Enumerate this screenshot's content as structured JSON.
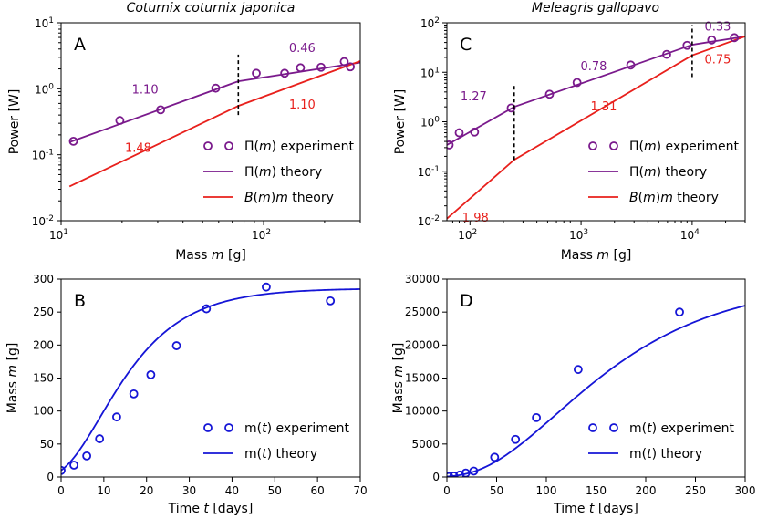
{
  "figure": {
    "title_left": "Coturnix coturnix japonica",
    "title_right": "Meleagris gallopavo"
  },
  "chart_data": [
    {
      "id": "A",
      "type": "line",
      "panel_label": "A",
      "title": "Coturnix coturnix japonica",
      "xlabel": "Mass m [g]",
      "ylabel": "Power [W]",
      "xscale": "log",
      "yscale": "log",
      "xlim": [
        10,
        300
      ],
      "ylim": [
        0.01,
        10
      ],
      "x_ticks": [
        {
          "v": 10,
          "label": "10^1"
        },
        {
          "v": 100,
          "label": "10^2"
        }
      ],
      "y_ticks": [
        {
          "v": 0.01,
          "label": "10^-2"
        },
        {
          "v": 0.1,
          "label": "10^-1"
        },
        {
          "v": 1,
          "label": "10^0"
        },
        {
          "v": 10,
          "label": "10^1"
        }
      ],
      "series": [
        {
          "name": "Π(m) experiment",
          "kind": "scatter",
          "color": "#7a1a8c",
          "x": [
            11.5,
            19.5,
            31,
            58,
            92,
            127,
            152,
            192,
            250,
            268
          ],
          "y": [
            0.16,
            0.33,
            0.48,
            1.02,
            1.72,
            1.72,
            2.08,
            2.12,
            2.58,
            2.15
          ]
        },
        {
          "name": "Π(m) theory",
          "kind": "line",
          "color": "#7a1a8c",
          "x": [
            11,
            75,
            300
          ],
          "y": [
            0.155,
            1.3,
            2.5
          ]
        },
        {
          "name": "B(m)m theory",
          "kind": "line",
          "color": "#e8201c",
          "x": [
            11,
            75,
            300
          ],
          "y": [
            0.033,
            0.55,
            2.63
          ]
        }
      ],
      "annotations": [
        {
          "text": "1.10",
          "x": 26,
          "y": 0.85,
          "color": "#7a1a8c"
        },
        {
          "text": "0.46",
          "x": 155,
          "y": 3.6,
          "color": "#7a1a8c"
        },
        {
          "text": "1.48",
          "x": 24,
          "y": 0.11,
          "color": "#e8201c"
        },
        {
          "text": "1.10",
          "x": 155,
          "y": 0.5,
          "color": "#e8201c"
        }
      ],
      "vline": {
        "x": 75,
        "ymin": 0.4,
        "ymax": 3.3
      },
      "legend": {
        "position": "lower-right",
        "labels": [
          "Π(m) experiment",
          "Π(m) theory",
          "B(m)m theory"
        ]
      }
    },
    {
      "id": "C",
      "type": "line",
      "panel_label": "C",
      "title": "Meleagris gallopavo",
      "xlabel": "Mass m [g]",
      "ylabel": "Power [W]",
      "xscale": "log",
      "yscale": "log",
      "xlim": [
        62,
        30000
      ],
      "ylim": [
        0.01,
        100
      ],
      "x_ticks": [
        {
          "v": 100,
          "label": "10^2"
        },
        {
          "v": 1000,
          "label": "10^3"
        },
        {
          "v": 10000,
          "label": "10^4"
        }
      ],
      "y_ticks": [
        {
          "v": 0.01,
          "label": "10^-2"
        },
        {
          "v": 0.1,
          "label": "10^-1"
        },
        {
          "v": 1,
          "label": "10^0"
        },
        {
          "v": 10,
          "label": "10^1"
        },
        {
          "v": 100,
          "label": "10^2"
        }
      ],
      "series": [
        {
          "name": "Π(m) experiment",
          "kind": "scatter",
          "color": "#7a1a8c",
          "x": [
            65,
            80,
            110,
            235,
            520,
            920,
            2800,
            5900,
            9000,
            15000,
            24000
          ],
          "y": [
            0.34,
            0.6,
            0.62,
            1.9,
            3.6,
            6.2,
            14,
            23,
            35,
            45,
            50
          ]
        },
        {
          "name": "Π(m) theory",
          "kind": "line",
          "color": "#7a1a8c",
          "x": [
            62,
            250,
            10000,
            30000
          ],
          "y": [
            0.34,
            2.0,
            36,
            53
          ]
        },
        {
          "name": "B(m)m theory",
          "kind": "line",
          "color": "#e8201c",
          "x": [
            62,
            250,
            10000,
            30000
          ],
          "y": [
            0.011,
            0.17,
            22,
            53
          ]
        }
      ],
      "annotations": [
        {
          "text": "1.27",
          "x": 108,
          "y": 2.7,
          "color": "#7a1a8c"
        },
        {
          "text": "0.78",
          "x": 1300,
          "y": 11,
          "color": "#7a1a8c"
        },
        {
          "text": "0.33",
          "x": 17000,
          "y": 70,
          "color": "#7a1a8c"
        },
        {
          "text": "1.98",
          "x": 112,
          "y": 0.0095,
          "color": "#e8201c"
        },
        {
          "text": "1.31",
          "x": 1600,
          "y": 1.7,
          "color": "#e8201c"
        },
        {
          "text": "0.75",
          "x": 17000,
          "y": 15,
          "color": "#e8201c"
        }
      ],
      "vlines": [
        {
          "x": 250,
          "ymin": 0.17,
          "ymax": 5.5
        },
        {
          "x": 10000,
          "ymin": 8,
          "ymax": 90
        }
      ],
      "legend": {
        "position": "lower-right",
        "labels": [
          "Π(m) experiment",
          "Π(m) theory",
          "B(m)m theory"
        ]
      }
    },
    {
      "id": "B",
      "type": "line",
      "panel_label": "B",
      "xlabel": "Time t [days]",
      "ylabel": "Mass m [g]",
      "xlim": [
        0,
        70
      ],
      "ylim": [
        0,
        300
      ],
      "x_ticks": [
        0,
        10,
        20,
        30,
        40,
        50,
        60,
        70
      ],
      "y_ticks": [
        0,
        50,
        100,
        150,
        200,
        250,
        300
      ],
      "series": [
        {
          "name": "m(t) experiment",
          "kind": "scatter",
          "color": "#1515d6",
          "x": [
            0,
            3,
            6,
            9,
            13,
            17,
            21,
            27,
            34,
            48,
            63
          ],
          "y": [
            10,
            18,
            32,
            58,
            91,
            126,
            155,
            199,
            255,
            288,
            267
          ]
        },
        {
          "name": "m(t) theory",
          "kind": "curve",
          "color": "#1515d6",
          "model": {
            "asymptote": 286,
            "m0": 10,
            "rate": 0.09
          }
        }
      ],
      "legend": {
        "position": "lower-right",
        "labels": [
          "m(t) experiment",
          "m(t) theory"
        ]
      }
    },
    {
      "id": "D",
      "type": "line",
      "panel_label": "D",
      "xlabel": "Time t [days]",
      "ylabel": "Mass m [g]",
      "xlim": [
        0,
        300
      ],
      "ylim": [
        0,
        30000
      ],
      "x_ticks": [
        0,
        50,
        100,
        150,
        200,
        250,
        300
      ],
      "y_ticks": [
        0,
        5000,
        10000,
        15000,
        20000,
        25000,
        30000
      ],
      "series": [
        {
          "name": "m(t) experiment",
          "kind": "scatter",
          "color": "#1515d6",
          "x": [
            2,
            7,
            13,
            19,
            27,
            48,
            69,
            90,
            132,
            234
          ],
          "y": [
            60,
            150,
            300,
            600,
            900,
            3000,
            5700,
            9000,
            16300,
            25000
          ]
        },
        {
          "name": "m(t) theory",
          "kind": "curve",
          "color": "#1515d6",
          "model": {
            "asymptote": 29800,
            "m0": 60,
            "rate": 0.0105
          }
        }
      ],
      "legend": {
        "position": "lower-right",
        "labels": [
          "m(t) experiment",
          "m(t) theory"
        ]
      }
    }
  ]
}
